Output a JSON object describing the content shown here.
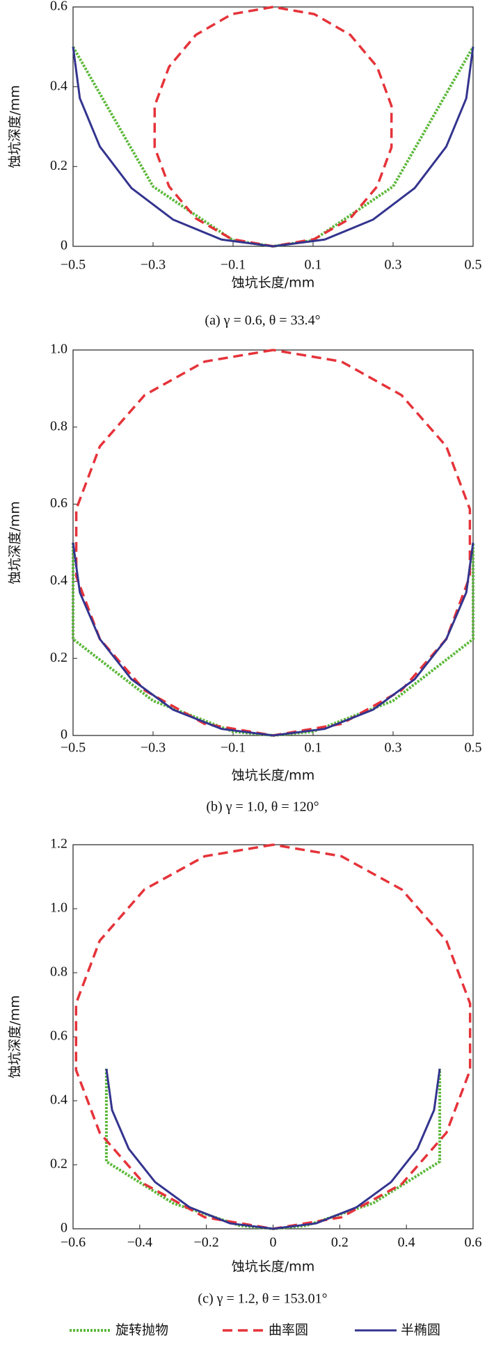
{
  "chart_data": [
    {
      "type": "line",
      "caption": "(a) γ = 0.6, θ = 33.4°",
      "xlabel": "蚀坑长度/mm",
      "ylabel": "蚀坑深度/mm",
      "xlim": [
        -0.5,
        0.5
      ],
      "ylim": [
        0,
        0.6
      ],
      "xticks": [
        {
          "value": -0.5,
          "label": "−0.5"
        },
        {
          "value": -0.3,
          "label": "−0.3"
        },
        {
          "value": -0.1,
          "label": "−0.1"
        },
        0.1,
        0.3,
        0.5
      ],
      "yticks": [
        0,
        0.2,
        0.4,
        0.6
      ],
      "series": [
        {
          "name": "旋转抛物",
          "color": "#5cb83a",
          "linestyle": "dotted",
          "x": [
            -0.5,
            -0.3,
            -0.1,
            0,
            0.1,
            0.3,
            0.5
          ],
          "values": [
            0.5,
            0.15,
            0.015,
            0,
            0.015,
            0.15,
            0.5
          ]
        },
        {
          "name": "曲率圆",
          "color": "#e5333a",
          "linestyle": "dashed",
          "x": [
            0,
            -0.103,
            -0.193,
            -0.26,
            -0.296,
            -0.296,
            -0.26,
            -0.193,
            -0.103,
            0,
            0.103,
            0.193,
            0.26,
            0.296,
            0.296,
            0.26,
            0.193,
            0.103,
            0
          ],
          "values": [
            0.6,
            0.582,
            0.53,
            0.45,
            0.352,
            0.248,
            0.15,
            0.07,
            0.018,
            0,
            0.018,
            0.07,
            0.15,
            0.248,
            0.352,
            0.45,
            0.53,
            0.582,
            0.6
          ]
        },
        {
          "name": "半椭圆",
          "color": "#33348e",
          "linestyle": "solid",
          "x": [
            -0.5,
            -0.483,
            -0.433,
            -0.354,
            -0.25,
            -0.129,
            0,
            0.129,
            0.25,
            0.354,
            0.433,
            0.483,
            0.5
          ],
          "values": [
            0.5,
            0.371,
            0.25,
            0.146,
            0.067,
            0.017,
            0,
            0.017,
            0.067,
            0.146,
            0.25,
            0.371,
            0.5
          ]
        }
      ]
    },
    {
      "type": "line",
      "caption": "(b) γ = 1.0, θ = 120°",
      "xlabel": "蚀坑长度/mm",
      "ylabel": "蚀坑深度/mm",
      "xlim": [
        -0.5,
        0.5
      ],
      "ylim": [
        0,
        1
      ],
      "xticks": [
        {
          "value": -0.5,
          "label": "−0.5"
        },
        {
          "value": -0.3,
          "label": "−0.3"
        },
        {
          "value": -0.1,
          "label": "−0.1"
        },
        0.1,
        0.3,
        0.5
      ],
      "yticks": [
        0,
        0.2,
        0.4,
        0.6,
        0.8,
        {
          "value": 1,
          "label": "1.0"
        }
      ],
      "series": [
        {
          "color": "#5cb83a",
          "linestyle": "dotted",
          "x": [
            -0.5,
            -0.5,
            -0.3,
            -0.1,
            0,
            0.1,
            0.3,
            0.5,
            0.5
          ],
          "values": [
            0.5,
            0.25,
            0.09,
            0.01,
            0,
            0.01,
            0.09,
            0.25,
            0.5
          ]
        },
        {
          "color": "#e5333a",
          "linestyle": "dashed",
          "x": [
            0,
            -0.171,
            -0.321,
            -0.433,
            -0.492,
            -0.492,
            -0.433,
            -0.321,
            -0.171,
            0,
            0.171,
            0.321,
            0.433,
            0.492,
            0.492,
            0.433,
            0.321,
            0.171,
            0
          ],
          "values": [
            1,
            0.97,
            0.883,
            0.75,
            0.587,
            0.413,
            0.25,
            0.117,
            0.03,
            0,
            0.03,
            0.117,
            0.25,
            0.413,
            0.587,
            0.75,
            0.883,
            0.97,
            1
          ]
        },
        {
          "color": "#33348e",
          "linestyle": "solid",
          "x": [
            -0.5,
            -0.483,
            -0.433,
            -0.354,
            -0.25,
            -0.129,
            0,
            0.129,
            0.25,
            0.354,
            0.433,
            0.483,
            0.5
          ],
          "values": [
            0.5,
            0.371,
            0.25,
            0.146,
            0.067,
            0.017,
            0,
            0.017,
            0.067,
            0.146,
            0.25,
            0.371,
            0.5
          ]
        }
      ]
    },
    {
      "type": "line",
      "caption": "(c) γ = 1.2, θ = 153.01°",
      "xlabel": "蚀坑长度/mm",
      "ylabel": "蚀坑深度/mm",
      "xlim": [
        -0.6,
        0.6
      ],
      "ylim": [
        0,
        1.2
      ],
      "xticks": [
        {
          "value": -0.6,
          "label": "−0.6"
        },
        {
          "value": -0.4,
          "label": "−0.4"
        },
        {
          "value": -0.2,
          "label": "−0.2"
        },
        0,
        0.2,
        0.4,
        0.6
      ],
      "yticks": [
        0,
        0.2,
        0.4,
        0.6,
        0.8,
        {
          "value": 1,
          "label": "1.0"
        },
        1.2
      ],
      "series": [
        {
          "color": "#5cb83a",
          "linestyle": "dotted",
          "x": [
            -0.5,
            -0.5,
            -0.3,
            -0.1,
            0,
            0.1,
            0.3,
            0.5,
            0.5
          ],
          "values": [
            0.5,
            0.21,
            0.08,
            0.01,
            0,
            0.01,
            0.08,
            0.21,
            0.5
          ]
        },
        {
          "color": "#e5333a",
          "linestyle": "dashed",
          "x": [
            0,
            -0.205,
            -0.386,
            -0.52,
            -0.591,
            -0.591,
            -0.52,
            -0.386,
            -0.205,
            0,
            0.205,
            0.386,
            0.52,
            0.591,
            0.591,
            0.52,
            0.386,
            0.205,
            0
          ],
          "values": [
            1.2,
            1.164,
            1.06,
            0.9,
            0.704,
            0.496,
            0.3,
            0.14,
            0.036,
            0,
            0.036,
            0.14,
            0.3,
            0.496,
            0.704,
            0.9,
            1.06,
            1.164,
            1.2
          ]
        },
        {
          "color": "#33348e",
          "linestyle": "solid",
          "x": [
            -0.5,
            -0.483,
            -0.433,
            -0.354,
            -0.25,
            -0.129,
            0,
            0.129,
            0.25,
            0.354,
            0.433,
            0.483,
            0.5
          ],
          "values": [
            0.5,
            0.371,
            0.25,
            0.146,
            0.067,
            0.017,
            0,
            0.017,
            0.067,
            0.146,
            0.25,
            0.371,
            0.5
          ]
        }
      ]
    }
  ]
}
